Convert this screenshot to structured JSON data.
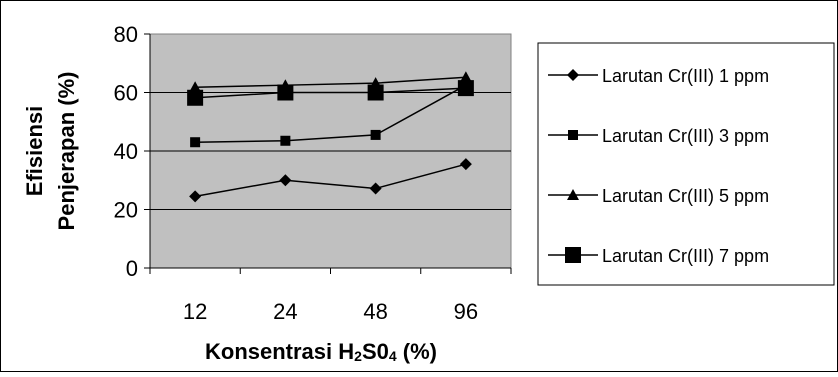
{
  "chart_data": {
    "type": "line",
    "categories": [
      "12",
      "24",
      "48",
      "96"
    ],
    "xlabel_main": "Konsentrasi H",
    "xlabel_sub1": "2",
    "xlabel_mid": "S0",
    "xlabel_sub2": "4",
    "xlabel_tail": " (%)",
    "ylabel_line1": "Efisiensi",
    "ylabel_line2": "Penjerapan (%)",
    "ylim": [
      0,
      80
    ],
    "yticks": [
      "0",
      "20",
      "40",
      "60",
      "80"
    ],
    "grid": true,
    "plot_background": "#c0c0c0",
    "legend_position": "right",
    "series": [
      {
        "name": "Larutan Cr(III) 1 ppm",
        "marker": "diamond",
        "values": [
          24.5,
          30,
          27.2,
          35.5
        ]
      },
      {
        "name": "Larutan Cr(III) 3 ppm",
        "marker": "square-small",
        "values": [
          43,
          43.5,
          45.5,
          62.5
        ]
      },
      {
        "name": "Larutan Cr(III) 5 ppm",
        "marker": "triangle",
        "values": [
          61.8,
          62.5,
          63.2,
          65.2
        ]
      },
      {
        "name": "Larutan Cr(III) 7 ppm",
        "marker": "square-large",
        "values": [
          58.2,
          60,
          60,
          61.5
        ]
      }
    ]
  }
}
